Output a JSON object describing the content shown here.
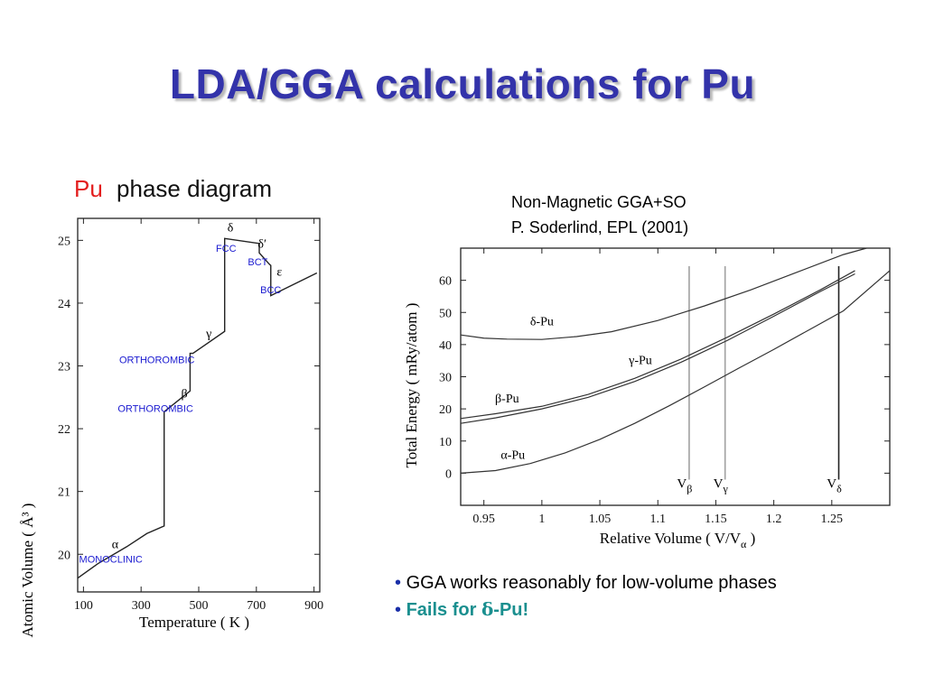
{
  "slide": {
    "title": "LDA/GGA calculations for Pu"
  },
  "left_chart": {
    "title_part1": "Pu",
    "title_part2": "phase diagram",
    "title_colors": {
      "Pu": "#e31e1e",
      "rest": "#111111"
    },
    "chart_data": {
      "type": "line",
      "xlabel": "Temperature ( K )",
      "ylabel": "Atomic Volume ( Å³ )",
      "x_ticks": [
        100,
        300,
        500,
        700,
        900
      ],
      "y_ticks": [
        20,
        21,
        22,
        23,
        24,
        25
      ],
      "xlim": [
        80,
        920
      ],
      "ylim": [
        19.4,
        25.35
      ],
      "series": [
        {
          "x": [
            80,
            150,
            250,
            320,
            380,
            380,
            470,
            470,
            480,
            590,
            590,
            710,
            710,
            745,
            750,
            750,
            910
          ],
          "y": [
            19.62,
            19.85,
            20.12,
            20.33,
            20.45,
            22.27,
            22.6,
            23.2,
            23.2,
            23.55,
            25.03,
            24.95,
            24.8,
            24.62,
            24.6,
            24.12,
            24.48
          ]
        }
      ],
      "annotations": [
        {
          "text": "α",
          "x": 210,
          "y": 20.1
        },
        {
          "text": "MONOCLINIC",
          "x": 195,
          "y": 19.87,
          "style": "blue"
        },
        {
          "text": "β",
          "x": 450,
          "y": 22.5,
          "style": "serif"
        },
        {
          "text": "ORTHOROMBIC",
          "x": 350,
          "y": 22.27,
          "style": "blue"
        },
        {
          "text": "γ",
          "x": 535,
          "y": 23.45
        },
        {
          "text": "ORTHOROMBIC",
          "x": 355,
          "y": 23.04,
          "style": "blue"
        },
        {
          "text": "δ",
          "x": 610,
          "y": 25.14
        },
        {
          "text": "FCC",
          "x": 595,
          "y": 24.82,
          "style": "blue"
        },
        {
          "text": "δ′",
          "x": 720,
          "y": 24.88
        },
        {
          "text": "BCT",
          "x": 705,
          "y": 24.6,
          "style": "blue"
        },
        {
          "text": "ε",
          "x": 780,
          "y": 24.44
        },
        {
          "text": "BCC",
          "x": 750,
          "y": 24.16,
          "style": "blue"
        }
      ]
    }
  },
  "right_chart": {
    "heading_line1": "Non-Magnetic GGA+SO",
    "heading_line2": "P. Soderlind, EPL (2001)",
    "chart_data": {
      "type": "line",
      "xlabel": "Relative Volume ( V/V",
      "xlabel_sub": "α",
      "xlabel_end": " )",
      "ylabel": "Total Energy ( mRy/atom )",
      "x_ticks": [
        0.95,
        1,
        1.05,
        1.1,
        1.15,
        1.2,
        1.25
      ],
      "x_tick_labels": [
        "0.95",
        "1",
        "1.05",
        "1.1",
        "1.15",
        "1.2",
        "1.25"
      ],
      "y_ticks": [
        0,
        10,
        20,
        30,
        40,
        50,
        60
      ],
      "xlim": [
        0.93,
        1.3
      ],
      "ylim": [
        -10,
        70
      ],
      "series": [
        {
          "name": "δ-Pu",
          "x": [
            0.93,
            0.95,
            0.97,
            1.0,
            1.03,
            1.06,
            1.1,
            1.14,
            1.18,
            1.22,
            1.26,
            1.28
          ],
          "y": [
            43,
            42,
            41.7,
            41.6,
            42.5,
            44,
            47.5,
            52,
            57,
            62.5,
            68,
            70
          ]
        },
        {
          "name": "γ-Pu",
          "x": [
            0.93,
            0.96,
            1.0,
            1.04,
            1.08,
            1.12,
            1.16,
            1.2,
            1.24,
            1.27
          ],
          "y": [
            17,
            18.5,
            20.8,
            24.5,
            29.5,
            35.5,
            42.3,
            49.5,
            57,
            63
          ]
        },
        {
          "name": "β-Pu",
          "x": [
            0.93,
            0.96,
            1.0,
            1.04,
            1.08,
            1.12,
            1.16,
            1.2,
            1.24,
            1.27
          ],
          "y": [
            15.5,
            17.2,
            20,
            23.6,
            28.5,
            34.5,
            41.3,
            48.8,
            56.5,
            62
          ]
        },
        {
          "name": "α-Pu",
          "x": [
            0.93,
            0.96,
            0.99,
            1.02,
            1.05,
            1.08,
            1.11,
            1.14,
            1.17,
            1.2,
            1.23,
            1.26,
            1.3
          ],
          "y": [
            0,
            0.8,
            3,
            6.3,
            10.5,
            15.5,
            21,
            26.8,
            32.7,
            38.5,
            44.5,
            50.5,
            63
          ]
        }
      ],
      "vlines": [
        {
          "label": "V",
          "sub": "β",
          "x": 1.127,
          "color": "#a0a0a0"
        },
        {
          "label": "V",
          "sub": "γ",
          "x": 1.158,
          "color": "#a0a0a0"
        },
        {
          "label": "V",
          "sub": "δ",
          "x": 1.256,
          "color": "#222222"
        }
      ]
    }
  },
  "bullets": {
    "item1": "GGA works reasonably for low-volume phases",
    "item2_prefix": "Fails for ",
    "item2_symbol": "δ",
    "item2_suffix": "-Pu!",
    "marker": "•"
  }
}
